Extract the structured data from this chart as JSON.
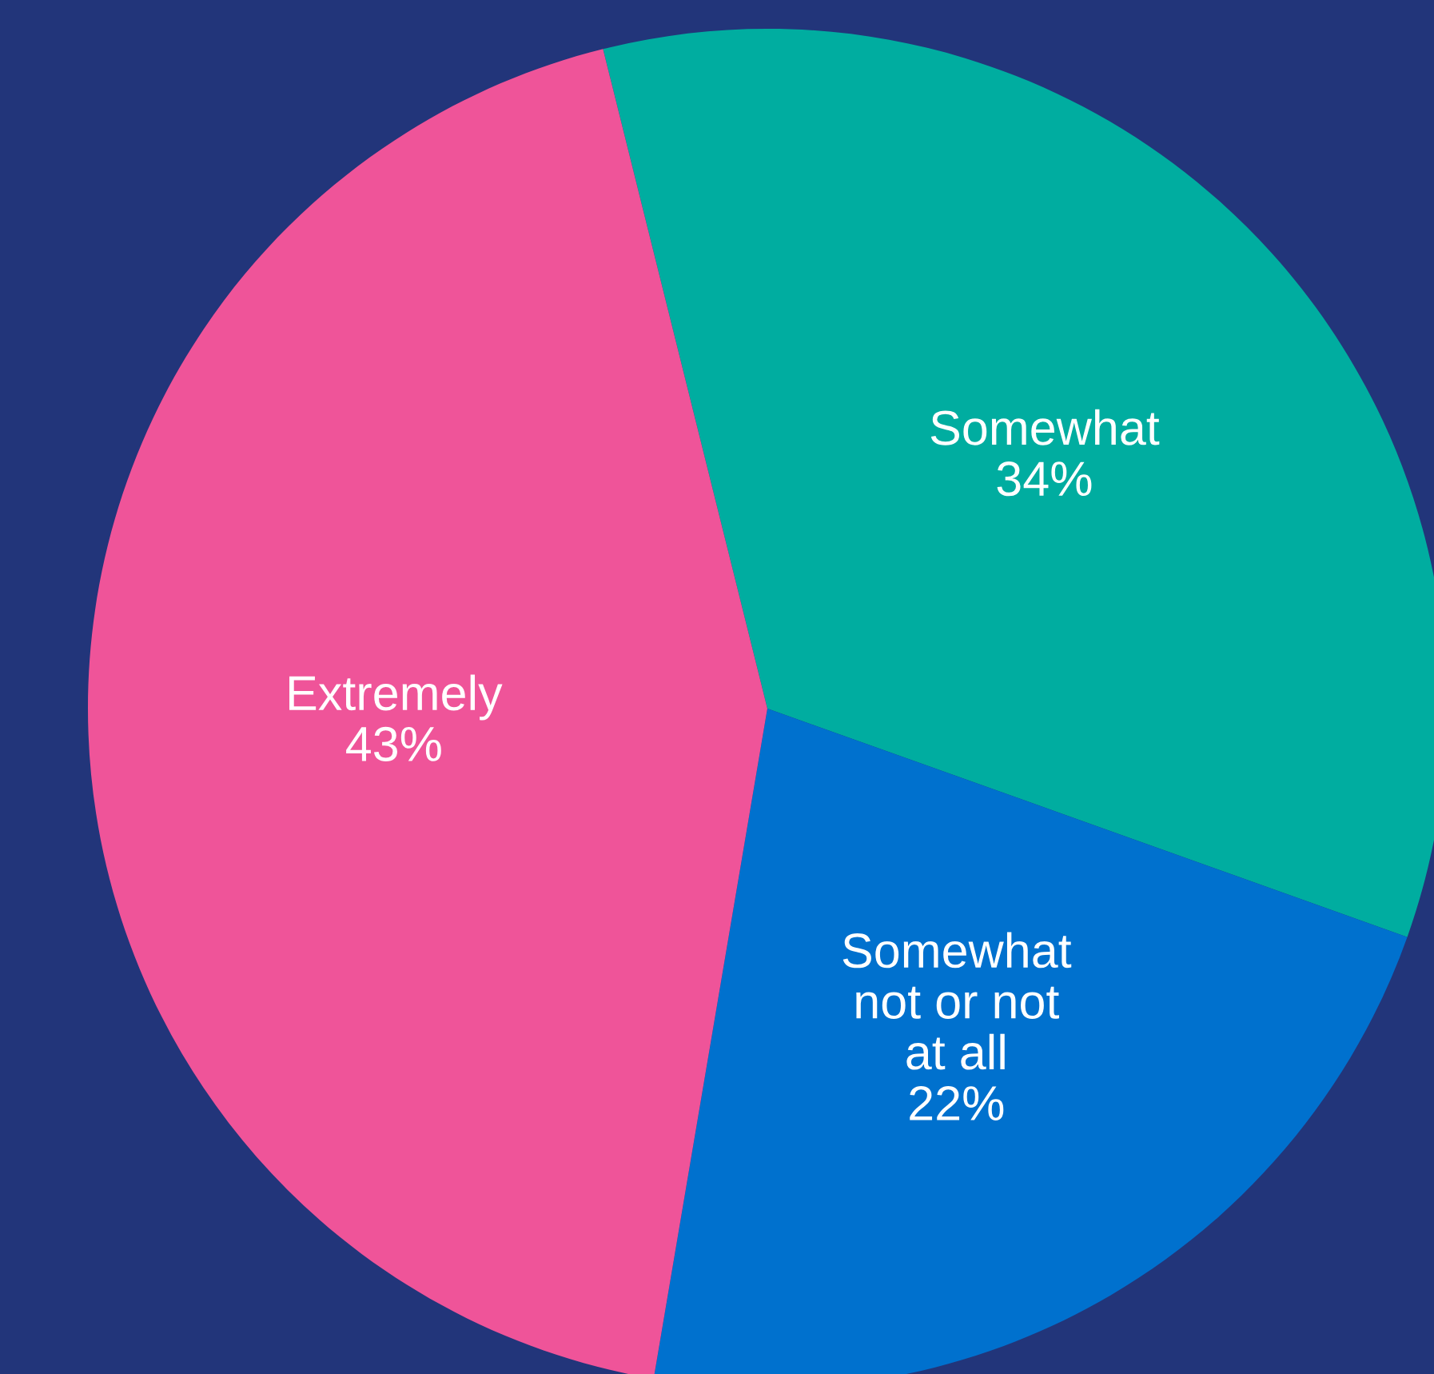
{
  "chart_data": {
    "type": "pie",
    "categories": [
      "Somewhat",
      "Somewhat\nnot or not\nat all",
      "Extremely"
    ],
    "values": [
      34,
      22,
      43
    ],
    "value_labels": [
      "34%",
      "22%",
      "43%"
    ],
    "colors": [
      "#00ada0",
      "#0071ce",
      "#ef5499"
    ]
  }
}
